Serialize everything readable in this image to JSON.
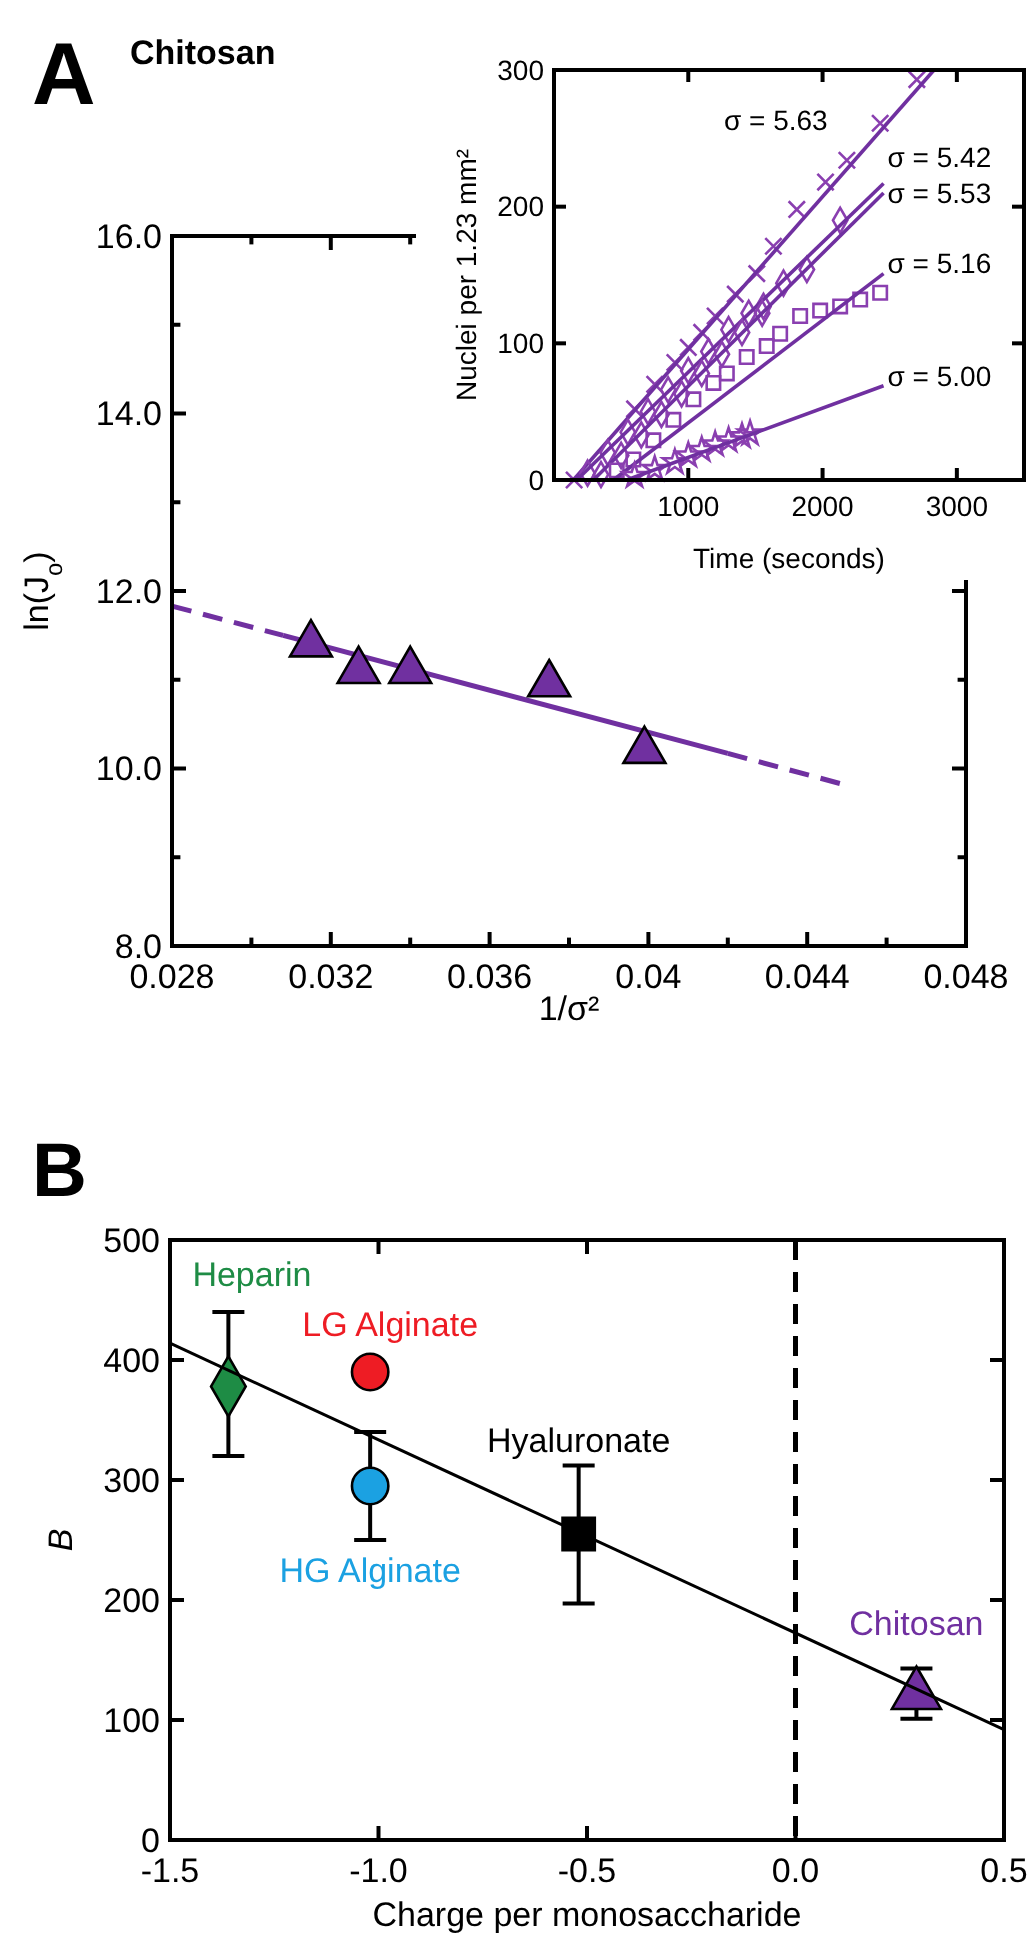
{
  "chart_data": [
    {
      "type": "scatter",
      "title": "Chitosan",
      "xlabel": "1/σ²",
      "ylabel": "ln(J$_{o}$)",
      "annotations": [
        "A"
      ],
      "xlim": [
        0.028,
        0.048
      ],
      "ylim": [
        8,
        16
      ],
      "xticks": [
        0.028,
        {
          "value": 0.03,
          "label": null
        },
        0.032,
        {
          "value": 0.034,
          "label": null
        },
        0.036,
        {
          "value": 0.038,
          "label": null
        },
        0.04,
        {
          "value": 0.042,
          "label": null
        },
        0.044,
        {
          "value": 0.046,
          "label": null
        },
        0.048
      ],
      "yticks": [
        {
          "value": 8,
          "label": "8.0"
        },
        {
          "value": 9,
          "label": null
        },
        {
          "value": 10,
          "label": "10.0"
        },
        {
          "value": 11,
          "label": null
        },
        {
          "value": 12,
          "label": "12.0"
        },
        {
          "value": 13,
          "label": null
        },
        {
          "value": 14,
          "label": "14.0"
        },
        {
          "value": 15,
          "label": null
        },
        {
          "value": 16,
          "label": "16.0"
        }
      ],
      "series": [
        {
          "type": "line",
          "color": "#7030a0",
          "line_style": "solid",
          "x": [
            0.0308,
            0.042
          ],
          "values": [
            11.5,
            10.17
          ]
        },
        {
          "type": "line",
          "color": "#7030a0",
          "line_style": "dashed",
          "x": [
            0.028,
            0.0308,
            0.036,
            0.042,
            0.045
          ],
          "values": [
            11.83,
            11.5,
            null,
            10.17,
            9.81
          ]
        },
        {
          "color": "#7030a0",
          "marker": "triangle",
          "x": [
            0.0315,
            0.0327,
            0.034,
            0.0375,
            0.0399
          ],
          "values": [
            11.4,
            11.1,
            11.1,
            10.95,
            10.2
          ]
        }
      ]
    },
    {
      "type": "scatter",
      "xlabel": "Time (seconds)",
      "ylabel": "Nuclei per 1.23 mm²",
      "xlim": [
        0,
        3500
      ],
      "ylim": [
        0,
        300
      ],
      "xticks": [
        1000,
        2000,
        3000
      ],
      "yticks": [
        0,
        100,
        200,
        300
      ],
      "series": [
        {
          "color": "#8a3fb0",
          "marker": "cross",
          "x": [
            150,
            600,
            750,
            900,
            1000,
            1100,
            1200,
            1350,
            1510,
            1634,
            1808,
            2022,
            2181,
            2429,
            2702
          ],
          "values": [
            0,
            52,
            70,
            86,
            97,
            108,
            120,
            136,
            151,
            171,
            198,
            218,
            234,
            261,
            293
          ]
        },
        {
          "type": "line",
          "name": "σ = 5.63",
          "color": "#7030a0",
          "x": [
            144,
            2830
          ],
          "values": [
            0,
            300
          ]
        },
        {
          "color": "#8a3fb0",
          "marker": "diamond",
          "x": [
            250,
            400,
            550,
            700,
            850,
            1000,
            1150,
            1300,
            1450,
            1560,
            1709,
            1883,
            2131
          ],
          "values": [
            5,
            20,
            35,
            50,
            66,
            80,
            94,
            110,
            122,
            127,
            144,
            154,
            190
          ]
        },
        {
          "type": "line",
          "name": "σ = 5.42",
          "color": "#7030a0",
          "x": [
            169,
            2454
          ],
          "values": [
            0,
            217
          ]
        },
        {
          "color": "#8a3fb0",
          "marker": "diamond",
          "x": [
            350,
            500,
            650,
            800,
            950,
            1100,
            1250,
            1400,
            1550
          ],
          "values": [
            4,
            18,
            33,
            48,
            63,
            78,
            92,
            108,
            122
          ]
        },
        {
          "type": "line",
          "name": "σ = 5.53",
          "color": "#7030a0",
          "x": [
            293,
            2454
          ],
          "values": [
            0,
            210
          ]
        },
        {
          "color": "#8a3fb0",
          "marker": "square",
          "x": [
            467,
            591,
            740,
            889,
            1038,
            1187,
            1287,
            1435,
            1584,
            1684,
            1833,
            1982,
            2131,
            2280,
            2429
          ],
          "values": [
            7,
            15,
            29,
            44,
            59,
            71,
            78,
            90,
            98,
            107,
            120,
            124,
            127,
            132,
            137
          ]
        },
        {
          "type": "line",
          "name": "σ = 5.16",
          "color": "#7030a0",
          "x": [
            442,
            2454
          ],
          "values": [
            0,
            151
          ]
        },
        {
          "color": "#8a3fb0",
          "marker": "star",
          "x": [
            600,
            750,
            900,
            1000,
            1100,
            1200,
            1300,
            1400,
            1460
          ],
          "values": [
            3,
            8,
            13,
            18,
            22,
            26,
            29,
            32,
            34
          ]
        },
        {
          "type": "line",
          "name": "σ = 5.00",
          "color": "#7030a0",
          "x": [
            541,
            2454
          ],
          "values": [
            0,
            69
          ]
        }
      ]
    },
    {
      "type": "scatter",
      "xlabel": "Charge per monosaccharide",
      "ylabel": "B",
      "annotations": [
        "B"
      ],
      "xlim": [
        -1.5,
        0.5
      ],
      "ylim": [
        0,
        500
      ],
      "xticks": [
        -1.5,
        {
          "value": -1,
          "label": "-1.0"
        },
        -0.5,
        {
          "value": 0,
          "label": "0.0"
        },
        0.5
      ],
      "yticks": [
        0,
        100,
        200,
        300,
        400,
        500
      ],
      "ref_lines": [
        {
          "axis": "x",
          "value": 0,
          "color": "#000000",
          "line_style": "dashed"
        }
      ],
      "series": [
        {
          "name": "Heparin",
          "color": "#1e8c45",
          "marker": "diamond",
          "x": [
            -1.36
          ],
          "values": [
            378
          ],
          "errors": [
            [
              320,
              440
            ]
          ]
        },
        {
          "name": "LG Alginate",
          "color": "#ee1c24",
          "marker": "circle",
          "x": [
            -1.02
          ],
          "values": [
            390
          ]
        },
        {
          "name": "HG Alginate",
          "color": "#1ba1e2",
          "marker": "circle",
          "x": [
            -1.02
          ],
          "values": [
            295
          ],
          "errors": [
            [
              250,
              340
            ]
          ]
        },
        {
          "name": "Hyaluronate",
          "color": "#000000",
          "marker": "square",
          "x": [
            -0.52
          ],
          "values": [
            255
          ],
          "errors": [
            [
              197,
              312
            ]
          ]
        },
        {
          "name": "Chitosan",
          "color": "#7030a0",
          "marker": "triangle",
          "x": [
            0.29
          ],
          "values": [
            121
          ],
          "errors": [
            [
              101,
              143
            ]
          ]
        },
        {
          "type": "line",
          "color": "#000000",
          "x": [
            -1.5,
            0.5
          ],
          "values": [
            414,
            92
          ]
        }
      ]
    }
  ]
}
